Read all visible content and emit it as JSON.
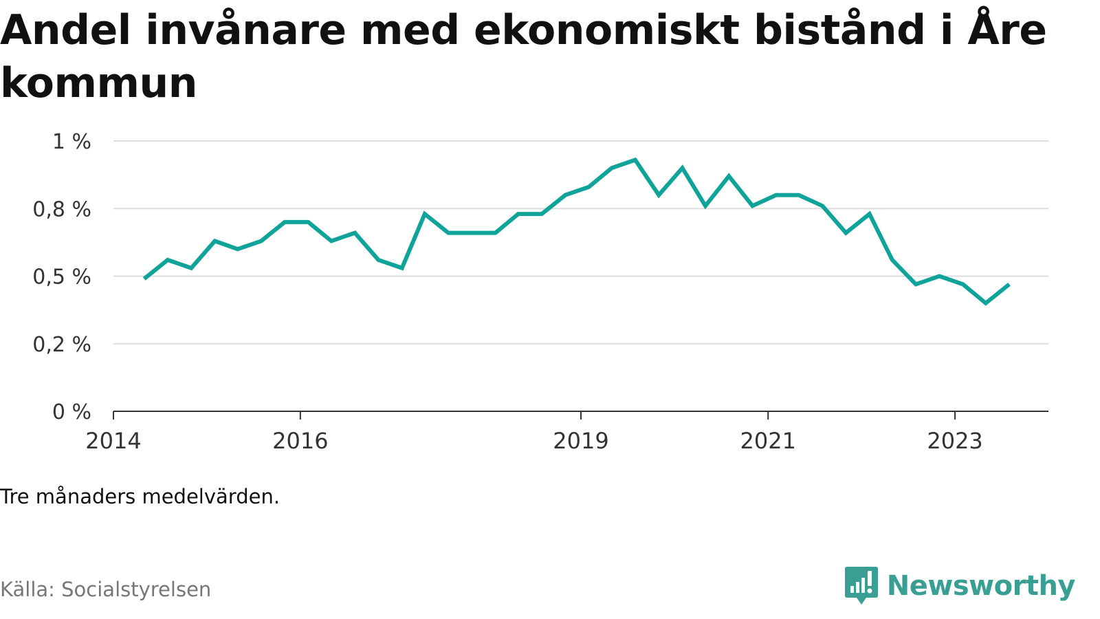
{
  "title": "Andel invånare med ekonomiskt bistånd i Åre kommun",
  "note": "Tre månaders medelvärden.",
  "source": "Källa: Socialstyrelsen",
  "brand": {
    "name": "Newsworthy",
    "icon": "newsworthy-logo-icon"
  },
  "colors": {
    "line": "#0fa39a",
    "grid": "#dddddd",
    "axis": "#333333",
    "brand": "#3a9f93"
  },
  "chart_data": {
    "type": "line",
    "title": "",
    "xlabel": "",
    "ylabel": "",
    "ylim": [
      0,
      1
    ],
    "yticks": [
      0,
      0.25,
      0.5,
      0.75,
      1
    ],
    "ytick_labels": [
      "0 %",
      "0,2 %",
      "0,5 %",
      "0,8 %",
      "1 %"
    ],
    "xlim": [
      "2014-01-01",
      "2024-01-01"
    ],
    "xticks": [
      "2014-01-01",
      "2016-01-01",
      "2019-01-01",
      "2021-01-01",
      "2023-01-01"
    ],
    "xtick_labels": [
      "2014",
      "2016",
      "2019",
      "2021",
      "2023"
    ],
    "grid": true,
    "legend": "none",
    "x": [
      "2014-05",
      "2014-08",
      "2014-11",
      "2015-02",
      "2015-05",
      "2015-08",
      "2015-11",
      "2016-02",
      "2016-05",
      "2016-08",
      "2016-11",
      "2017-02",
      "2017-05",
      "2017-08",
      "2017-11",
      "2018-02",
      "2018-05",
      "2018-08",
      "2018-11",
      "2019-02",
      "2019-05",
      "2019-08",
      "2019-11",
      "2020-02",
      "2020-05",
      "2020-08",
      "2020-11",
      "2021-02",
      "2021-05",
      "2021-08",
      "2021-11",
      "2022-02",
      "2022-05",
      "2022-08",
      "2022-11",
      "2023-02",
      "2023-05",
      "2023-08"
    ],
    "values": [
      0.49,
      0.56,
      0.53,
      0.63,
      0.6,
      0.63,
      0.7,
      0.7,
      0.63,
      0.66,
      0.56,
      0.53,
      0.73,
      0.66,
      0.66,
      0.66,
      0.73,
      0.73,
      0.8,
      0.83,
      0.9,
      0.93,
      0.8,
      0.9,
      0.76,
      0.87,
      0.76,
      0.8,
      0.8,
      0.76,
      0.66,
      0.73,
      0.56,
      0.47,
      0.5,
      0.47,
      0.4,
      0.47
    ]
  }
}
